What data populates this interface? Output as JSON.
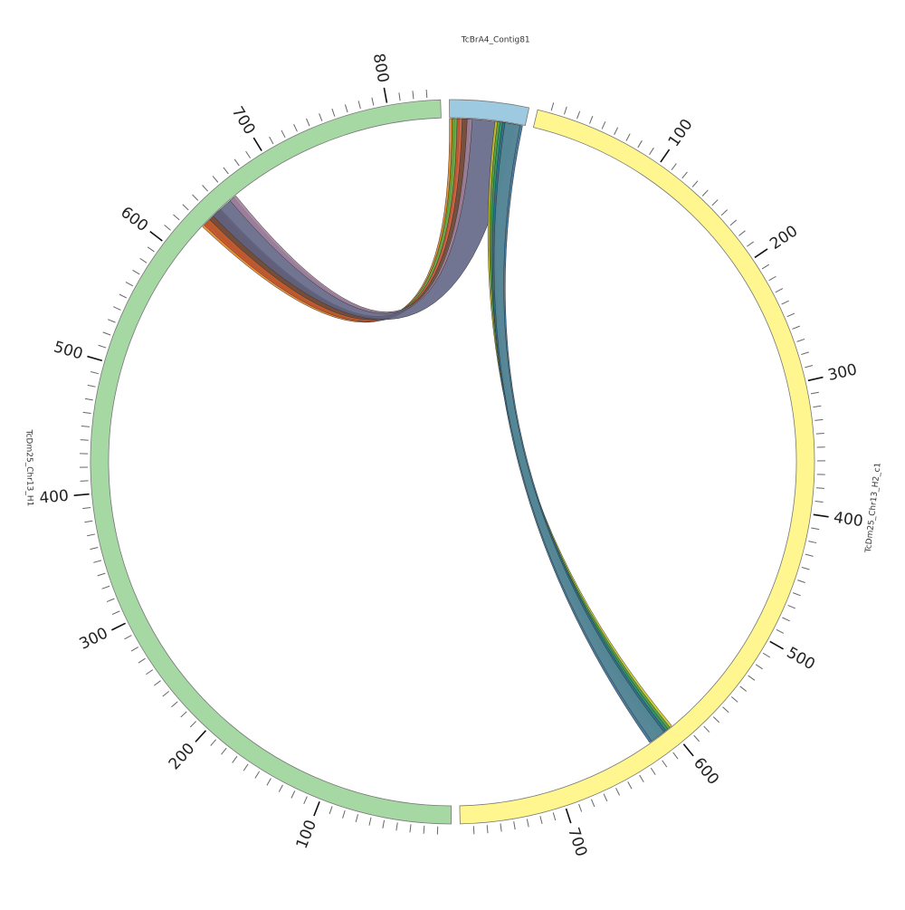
{
  "chart_data": {
    "type": "chord",
    "tick_step": 10,
    "label_step": 100,
    "segments": [
      {
        "id": "contig81",
        "name": "TcBrA4_Contig81",
        "length": 60,
        "color": "#9ecae1"
      },
      {
        "id": "h2",
        "name": "TcDm25_Chr13_H2_c1",
        "length": 780,
        "color": "#fff68f"
      },
      {
        "id": "h1",
        "name": "TcDm25_Chr13_H1",
        "length": 840,
        "color": "#a6d8a4"
      }
    ],
    "ticks": {
      "contig81": [],
      "h2": [
        {
          "pos": 100,
          "label": "100"
        },
        {
          "pos": 200,
          "label": "200"
        },
        {
          "pos": 300,
          "label": "300"
        },
        {
          "pos": 400,
          "label": "400"
        },
        {
          "pos": 500,
          "label": "500"
        },
        {
          "pos": 600,
          "label": "600"
        },
        {
          "pos": 700,
          "label": "700"
        }
      ],
      "h1": [
        {
          "pos": 100,
          "label": "100"
        },
        {
          "pos": 200,
          "label": "200"
        },
        {
          "pos": 300,
          "label": "300"
        },
        {
          "pos": 400,
          "label": "400"
        },
        {
          "pos": 500,
          "label": "500"
        },
        {
          "pos": 600,
          "label": "600"
        },
        {
          "pos": 700,
          "label": "700"
        },
        {
          "pos": 800,
          "label": "800"
        }
      ]
    },
    "links": [
      {
        "a": "contig81",
        "a_start": 0,
        "a_end": 4,
        "b": "h1",
        "b_start": 628,
        "b_end": 634,
        "color": "#e6821e"
      },
      {
        "a": "contig81",
        "a_start": 2,
        "a_end": 8,
        "b": "h1",
        "b_start": 632,
        "b_end": 642,
        "color": "#5a9e32"
      },
      {
        "a": "contig81",
        "a_start": 6,
        "a_end": 14,
        "b": "h1",
        "b_start": 630,
        "b_end": 646,
        "color": "#c8502d"
      },
      {
        "a": "contig81",
        "a_start": 10,
        "a_end": 16,
        "b": "h1",
        "b_start": 636,
        "b_end": 648,
        "color": "#6b4c3b"
      },
      {
        "a": "contig81",
        "a_start": 16,
        "a_end": 52,
        "b": "h1",
        "b_start": 640,
        "b_end": 662,
        "color": "#5f6282"
      },
      {
        "a": "contig81",
        "a_start": 14,
        "a_end": 18,
        "b": "h1",
        "b_start": 658,
        "b_end": 664,
        "color": "#a0809a"
      },
      {
        "a": "contig81",
        "a_start": 36,
        "a_end": 42,
        "b": "h2",
        "b_start": 598,
        "b_end": 608,
        "color": "#c9c21e"
      },
      {
        "a": "contig81",
        "a_start": 38,
        "a_end": 44,
        "b": "h2",
        "b_start": 600,
        "b_end": 610,
        "color": "#4aa048"
      },
      {
        "a": "contig81",
        "a_start": 40,
        "a_end": 46,
        "b": "h2",
        "b_start": 602,
        "b_end": 612,
        "color": "#2a9470"
      },
      {
        "a": "contig81",
        "a_start": 42,
        "a_end": 58,
        "b": "h2",
        "b_start": 604,
        "b_end": 620,
        "color": "#2f6b94"
      },
      {
        "a": "contig81",
        "a_start": 44,
        "a_end": 56,
        "b": "h2",
        "b_start": 606,
        "b_end": 618,
        "color": "#5a8a96"
      }
    ]
  }
}
